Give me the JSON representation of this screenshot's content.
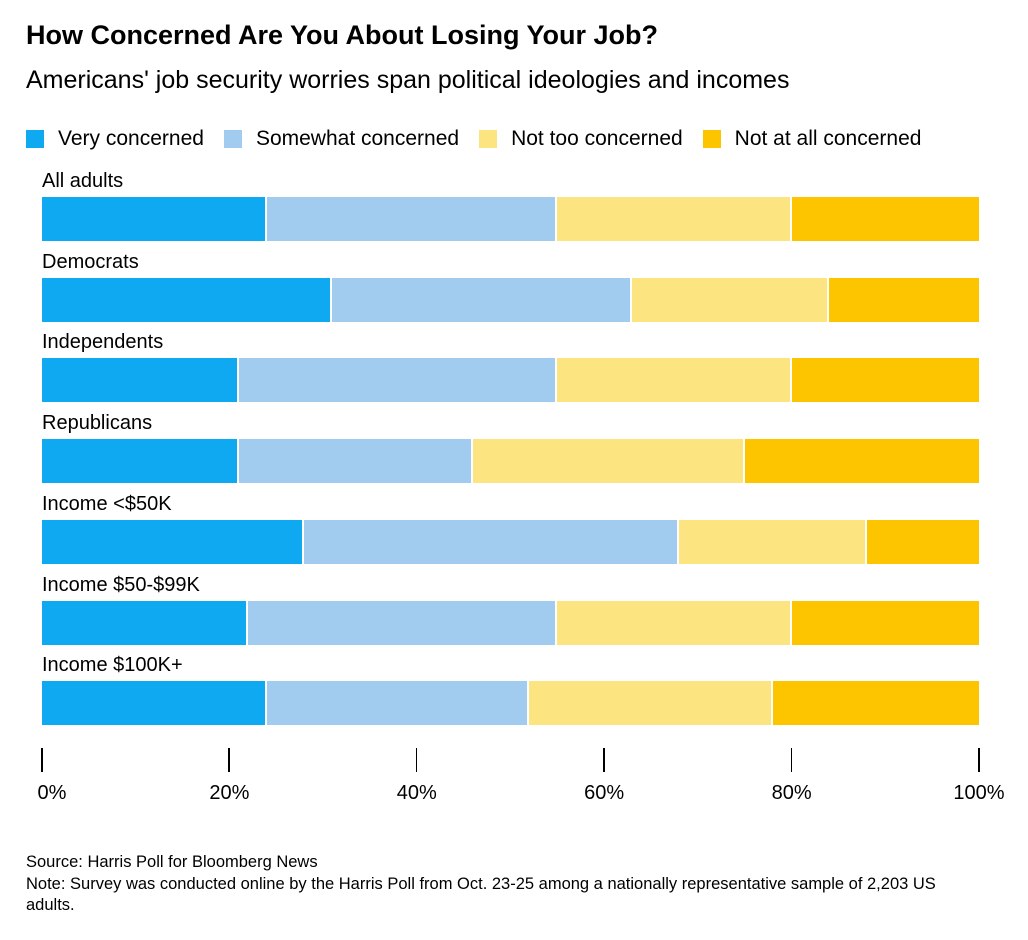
{
  "chart_data": {
    "type": "bar",
    "orientation": "horizontal-stacked",
    "title": "How Concerned Are You About Losing Your Job?",
    "subtitle": "Americans' job security worries span political ideologies and incomes",
    "categories": [
      "All adults",
      "Democrats",
      "Independents",
      "Republicans",
      "Income <$50K",
      "Income $50-$99K",
      "Income $100K+"
    ],
    "series": [
      {
        "name": "Very concerned",
        "color": "#0ea9f0",
        "values": [
          24,
          31,
          21,
          21,
          28,
          22,
          24
        ]
      },
      {
        "name": "Somewhat concerned",
        "color": "#a2cbf0",
        "values": [
          31,
          32,
          34,
          25,
          40,
          33,
          28
        ]
      },
      {
        "name": "Not too concerned",
        "color": "#fce581",
        "values": [
          25,
          21,
          25,
          29,
          20,
          25,
          26
        ]
      },
      {
        "name": "Not at all concerned",
        "color": "#fdc400",
        "values": [
          20,
          16,
          20,
          25,
          12,
          20,
          22
        ]
      }
    ],
    "xlim": [
      0,
      100
    ],
    "xticks": [
      "0%",
      "20%",
      "40%",
      "60%",
      "80%",
      "100%"
    ],
    "legend_position": "top"
  },
  "footer": {
    "source": "Source: Harris Poll for Bloomberg News",
    "note": "Note: Survey was conducted online by the Harris Poll from Oct. 23-25 among a nationally representative sample of 2,203 US adults."
  }
}
